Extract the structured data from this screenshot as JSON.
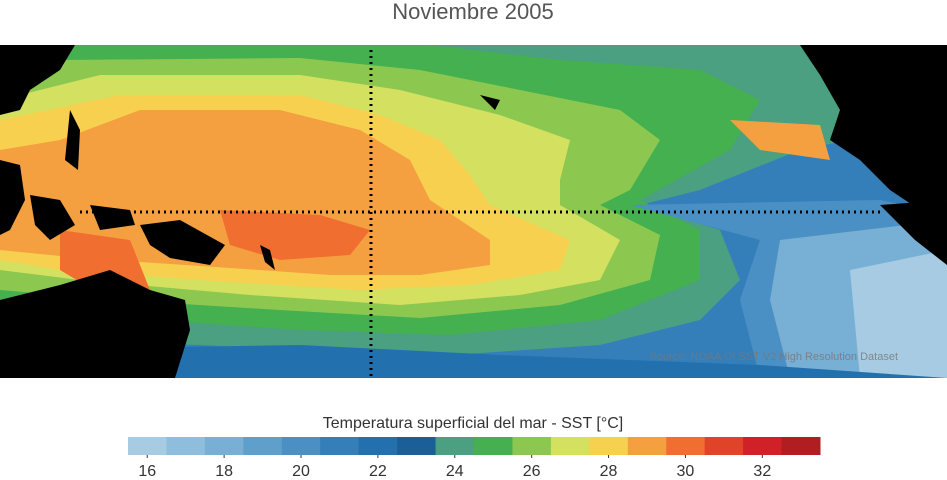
{
  "map": {
    "title": "Noviembre 2005",
    "source": "Source: NOAA OI SST V2 High Resolution Dataset",
    "colorbar": {
      "label": "Temperatura superficial del mar - SST  [°C]",
      "clim": [
        15.5,
        33.5
      ],
      "colors": [
        "#a6cbe3",
        "#8fbddc",
        "#78afd5",
        "#5f9fcc",
        "#4a90c4",
        "#347fba",
        "#2270ae",
        "#1a5f98",
        "#4aa080",
        "#45b050",
        "#8cc850",
        "#d4e060",
        "#f8d050",
        "#f5a040",
        "#f06e30",
        "#e04428",
        "#d02028",
        "#b01e22"
      ],
      "ticks": [
        16,
        18,
        20,
        22,
        24,
        26,
        28,
        30,
        32
      ]
    }
  }
}
